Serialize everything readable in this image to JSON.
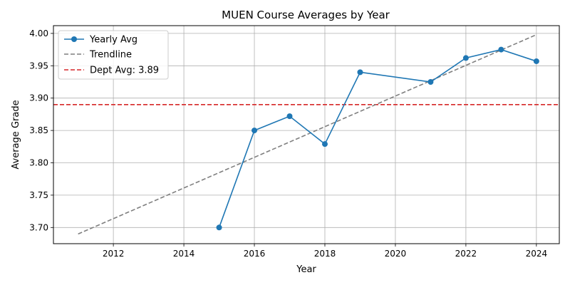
{
  "chart_data": {
    "type": "line",
    "title": "MUEN Course Averages by Year",
    "xlabel": "Year",
    "ylabel": "Average Grade",
    "xlim": [
      2010.3,
      2024.65
    ],
    "ylim": [
      3.675,
      4.012
    ],
    "xticks": [
      2012,
      2014,
      2016,
      2018,
      2020,
      2022,
      2024
    ],
    "yticks": [
      3.7,
      3.75,
      3.8,
      3.85,
      3.9,
      3.95,
      4.0
    ],
    "grid": true,
    "legend_position": "top-left",
    "series": [
      {
        "name": "Yearly Avg",
        "style": "solid-line-with-circle-markers",
        "color": "#1f77b4",
        "x": [
          2015,
          2016,
          2017,
          2018,
          2019,
          2021,
          2022,
          2023,
          2024
        ],
        "y": [
          3.7,
          3.85,
          3.872,
          3.829,
          3.94,
          3.925,
          3.962,
          3.975,
          3.957
        ]
      },
      {
        "name": "Trendline",
        "style": "dashed-line",
        "color": "#7f7f7f",
        "x": [
          2011,
          2024
        ],
        "y": [
          3.69,
          3.998
        ]
      },
      {
        "name": "Dept Avg: 3.89",
        "style": "dashed-horizontal-line",
        "color": "#d62728",
        "y_value": 3.89
      }
    ]
  }
}
